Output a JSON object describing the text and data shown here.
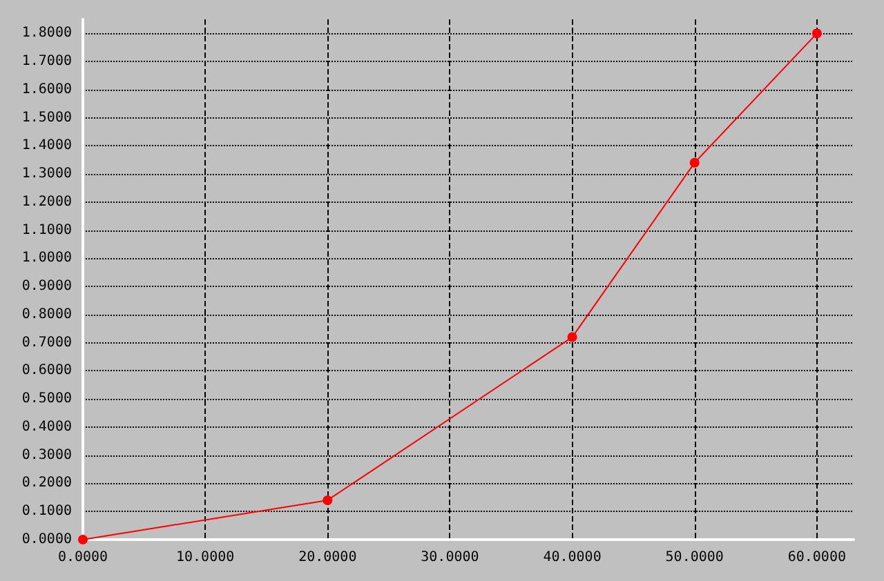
{
  "chart_data": {
    "type": "line",
    "x": [
      0,
      20,
      40,
      50,
      60
    ],
    "values": [
      0,
      0.14,
      0.72,
      1.34,
      1.8
    ],
    "color": "#ff0000",
    "marker": "circle",
    "line_style": "solid",
    "grid": true,
    "xlim": [
      0,
      63
    ],
    "ylim": [
      0,
      1.85
    ],
    "xticks": [
      {
        "value": 0,
        "label": "0.0000"
      },
      {
        "value": 10,
        "label": "10.0000"
      },
      {
        "value": 20,
        "label": "20.0000"
      },
      {
        "value": 30,
        "label": "30.0000"
      },
      {
        "value": 40,
        "label": "40.0000"
      },
      {
        "value": 50,
        "label": "50.0000"
      },
      {
        "value": 60,
        "label": "60.0000"
      }
    ],
    "yticks": [
      {
        "value": 0,
        "label": "0.0000"
      },
      {
        "value": 0.1,
        "label": "0.1000"
      },
      {
        "value": 0.2,
        "label": "0.2000"
      },
      {
        "value": 0.3,
        "label": "0.3000"
      },
      {
        "value": 0.4,
        "label": "0.4000"
      },
      {
        "value": 0.5,
        "label": "0.5000"
      },
      {
        "value": 0.6,
        "label": "0.6000"
      },
      {
        "value": 0.7,
        "label": "0.7000"
      },
      {
        "value": 0.8,
        "label": "0.8000"
      },
      {
        "value": 0.9,
        "label": "0.9000"
      },
      {
        "value": 1,
        "label": "1.0000"
      },
      {
        "value": 1.1,
        "label": "1.1000"
      },
      {
        "value": 1.2,
        "label": "1.2000"
      },
      {
        "value": 1.3,
        "label": "1.3000"
      },
      {
        "value": 1.4,
        "label": "1.4000"
      },
      {
        "value": 1.5,
        "label": "1.5000"
      },
      {
        "value": 1.6,
        "label": "1.6000"
      },
      {
        "value": 1.7,
        "label": "1.7000"
      },
      {
        "value": 1.8,
        "label": "1.8000"
      }
    ]
  }
}
